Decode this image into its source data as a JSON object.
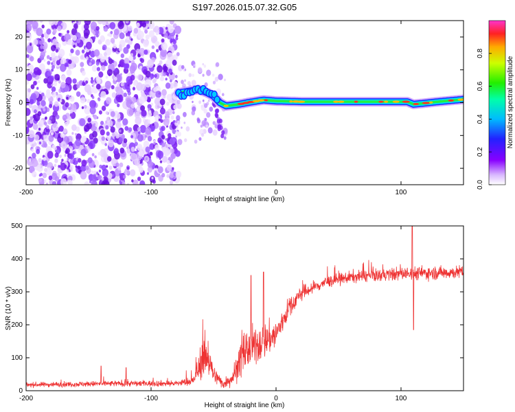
{
  "chart_data": [
    {
      "type": "heatmap",
      "title": "S197.2026.015.07.32.G05",
      "xlabel": "Height of straight line (km)",
      "ylabel": "Frequency (Hz)",
      "xlim": [
        -200,
        150
      ],
      "ylim": [
        -25,
        25
      ],
      "xticks": [
        -200,
        -100,
        0,
        100
      ],
      "yticks": [
        -20,
        -10,
        0,
        10,
        20
      ],
      "colorbar": {
        "label": "Normalized spectral amplitude",
        "range": [
          0,
          1
        ],
        "ticks": [
          0.0,
          0.2,
          0.4,
          0.6,
          0.8
        ]
      },
      "noise_region_x": [
        -200,
        -78
      ],
      "signal_trace": [
        {
          "x": -78,
          "f": 3.0
        },
        {
          "x": -70,
          "f": 3.5
        },
        {
          "x": -62,
          "f": 4.0
        },
        {
          "x": -55,
          "f": 3.0
        },
        {
          "x": -50,
          "f": 2.0
        },
        {
          "x": -45,
          "f": 0.0
        },
        {
          "x": -40,
          "f": -1.0
        },
        {
          "x": -30,
          "f": -0.5
        },
        {
          "x": -20,
          "f": 0.2
        },
        {
          "x": -10,
          "f": 0.8
        },
        {
          "x": 0,
          "f": 0.5
        },
        {
          "x": 20,
          "f": 0.3
        },
        {
          "x": 50,
          "f": 0.3
        },
        {
          "x": 80,
          "f": 0.3
        },
        {
          "x": 105,
          "f": 0.3
        },
        {
          "x": 110,
          "f": -0.5
        },
        {
          "x": 130,
          "f": 0.3
        },
        {
          "x": 150,
          "f": 1.0
        }
      ]
    },
    {
      "type": "line",
      "xlabel": "Height of straight line (km)",
      "ylabel": "SNR (10 * v/v)",
      "xlim": [
        -200,
        150
      ],
      "ylim": [
        0,
        500
      ],
      "xticks": [
        -200,
        -100,
        0,
        100
      ],
      "yticks": [
        0,
        100,
        200,
        300,
        400,
        500
      ],
      "color": "#ee3333",
      "envelope": [
        {
          "x": -200,
          "mean": 18,
          "noise": 8
        },
        {
          "x": -120,
          "mean": 22,
          "noise": 10
        },
        {
          "x": -80,
          "mean": 22,
          "noise": 10
        },
        {
          "x": -66,
          "mean": 30,
          "noise": 15
        },
        {
          "x": -60,
          "mean": 90,
          "noise": 60
        },
        {
          "x": -55,
          "mean": 110,
          "noise": 70
        },
        {
          "x": -50,
          "mean": 50,
          "noise": 30
        },
        {
          "x": -42,
          "mean": 20,
          "noise": 15
        },
        {
          "x": -35,
          "mean": 40,
          "noise": 30
        },
        {
          "x": -25,
          "mean": 120,
          "noise": 70
        },
        {
          "x": -10,
          "mean": 150,
          "noise": 60
        },
        {
          "x": 0,
          "mean": 170,
          "noise": 50
        },
        {
          "x": 10,
          "mean": 250,
          "noise": 35
        },
        {
          "x": 20,
          "mean": 295,
          "noise": 25
        },
        {
          "x": 40,
          "mean": 330,
          "noise": 20
        },
        {
          "x": 60,
          "mean": 345,
          "noise": 20
        },
        {
          "x": 100,
          "mean": 355,
          "noise": 22
        },
        {
          "x": 150,
          "mean": 360,
          "noise": 22
        }
      ],
      "spikes": [
        {
          "x": -140,
          "y": 75
        },
        {
          "x": -120,
          "y": 70
        },
        {
          "x": -20,
          "y": 350
        },
        {
          "x": -10,
          "y": 360
        },
        {
          "x": 109,
          "y": 500
        },
        {
          "x": 110,
          "y": 185
        }
      ]
    }
  ]
}
